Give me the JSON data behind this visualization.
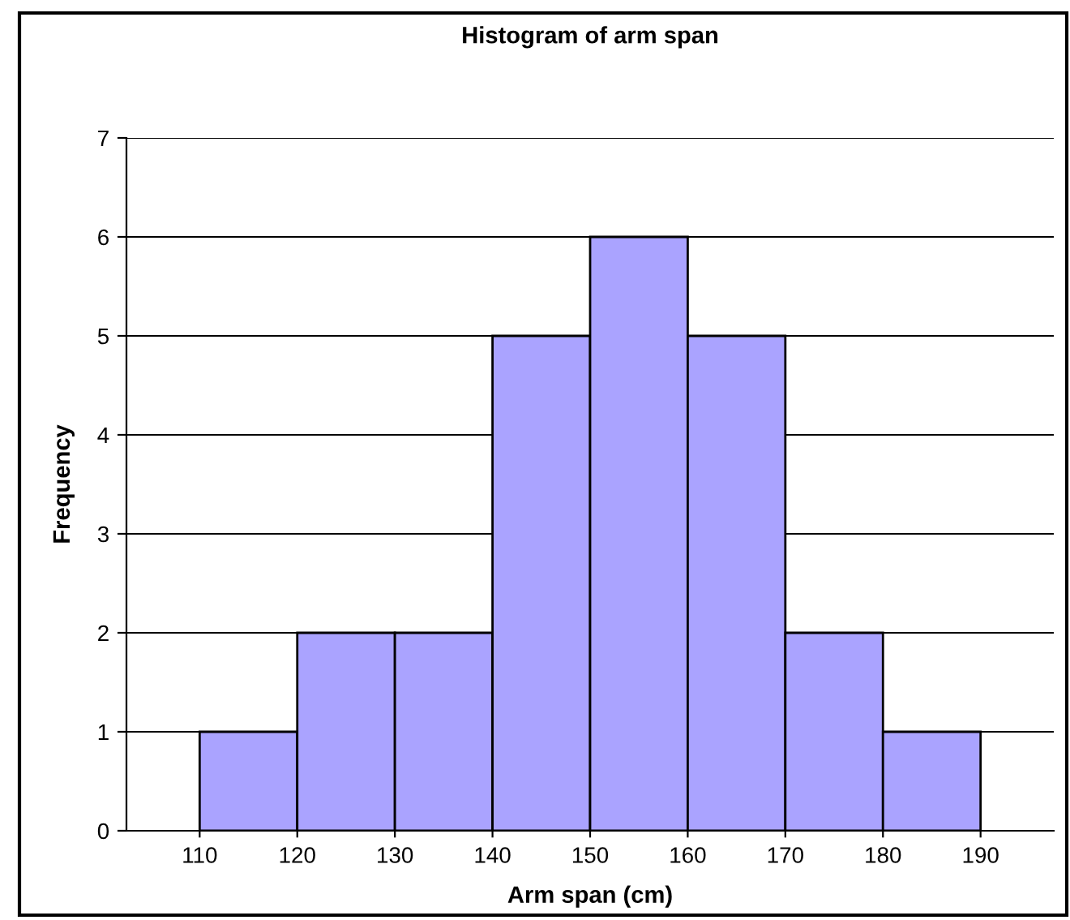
{
  "chart_data": {
    "type": "histogram",
    "title": "Histogram of arm span",
    "xlabel": "Arm span (cm)",
    "ylabel": "Frequency",
    "bins": [
      110,
      120,
      130,
      140,
      150,
      160,
      170,
      180,
      190
    ],
    "values": [
      1,
      2,
      2,
      5,
      6,
      5,
      2,
      1
    ],
    "color": "#aaa3ff",
    "xlim": [
      102.5,
      197.5
    ],
    "xticks": [
      110,
      120,
      130,
      140,
      150,
      160,
      170,
      180,
      190
    ],
    "ylim": [
      0,
      7
    ],
    "yticks": [
      0,
      1,
      2,
      3,
      4,
      5,
      6,
      7
    ],
    "grid": "y",
    "legend": false
  }
}
